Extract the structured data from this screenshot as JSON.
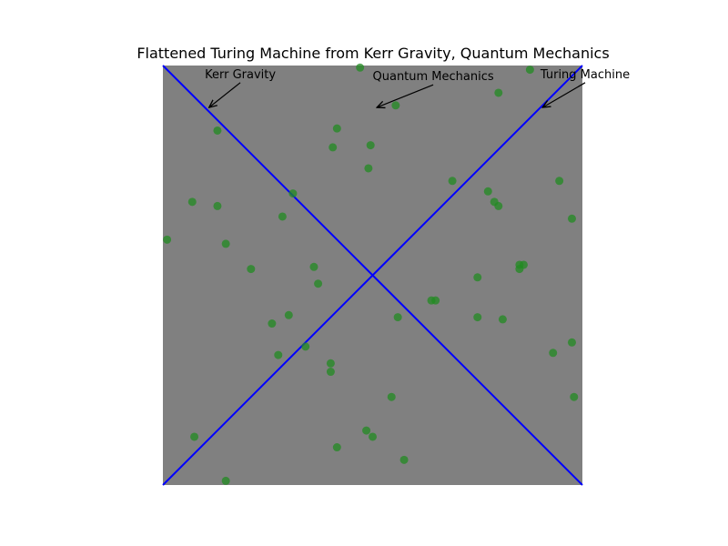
{
  "chart_data": {
    "type": "scatter",
    "title": "Flattened Turing Machine from Kerr Gravity, Quantum Mechanics",
    "xlabel": "",
    "ylabel": "",
    "xlim": [
      -1,
      1
    ],
    "ylim": [
      -1,
      1
    ],
    "axes_visible": false,
    "grid": false,
    "colors": {
      "background": "#808080",
      "points": "#228b22",
      "curves": "#0000ff"
    },
    "curves": [
      {
        "x": [
          -1,
          -0.02,
          0,
          0.02,
          1
        ],
        "y": [
          1,
          0.02,
          0,
          0.02,
          1
        ]
      },
      {
        "x": [
          -1,
          -0.02,
          0,
          0.02,
          1
        ],
        "y": [
          -1,
          -0.02,
          0,
          -0.02,
          -1
        ]
      }
    ],
    "points": [
      {
        "x": -0.06,
        "y": 0.99
      },
      {
        "x": 0.75,
        "y": 0.98
      },
      {
        "x": 0.6,
        "y": 0.87
      },
      {
        "x": 0.11,
        "y": 0.81
      },
      {
        "x": -0.74,
        "y": 0.69
      },
      {
        "x": -0.17,
        "y": 0.7
      },
      {
        "x": -0.19,
        "y": 0.61
      },
      {
        "x": -0.01,
        "y": 0.62
      },
      {
        "x": -0.02,
        "y": 0.51
      },
      {
        "x": 0.38,
        "y": 0.45
      },
      {
        "x": 0.55,
        "y": 0.4
      },
      {
        "x": 0.89,
        "y": 0.45
      },
      {
        "x": -0.38,
        "y": 0.39
      },
      {
        "x": -0.86,
        "y": 0.35
      },
      {
        "x": -0.74,
        "y": 0.33
      },
      {
        "x": 0.58,
        "y": 0.35
      },
      {
        "x": 0.6,
        "y": 0.33
      },
      {
        "x": -0.43,
        "y": 0.28
      },
      {
        "x": 0.95,
        "y": 0.27
      },
      {
        "x": -0.98,
        "y": 0.17
      },
      {
        "x": -0.7,
        "y": 0.15
      },
      {
        "x": -0.58,
        "y": 0.03
      },
      {
        "x": -0.28,
        "y": 0.04
      },
      {
        "x": 0.7,
        "y": 0.05
      },
      {
        "x": 0.72,
        "y": 0.05
      },
      {
        "x": 0.7,
        "y": 0.03
      },
      {
        "x": 0.5,
        "y": -0.01
      },
      {
        "x": -0.26,
        "y": -0.04
      },
      {
        "x": 0.28,
        "y": -0.12
      },
      {
        "x": 0.3,
        "y": -0.12
      },
      {
        "x": 0.12,
        "y": -0.2
      },
      {
        "x": 0.5,
        "y": -0.2
      },
      {
        "x": 0.62,
        "y": -0.21
      },
      {
        "x": -0.4,
        "y": -0.19
      },
      {
        "x": -0.48,
        "y": -0.23
      },
      {
        "x": -0.32,
        "y": -0.34
      },
      {
        "x": -0.45,
        "y": -0.38
      },
      {
        "x": 0.86,
        "y": -0.37
      },
      {
        "x": 0.95,
        "y": -0.32
      },
      {
        "x": -0.2,
        "y": -0.42
      },
      {
        "x": -0.2,
        "y": -0.46
      },
      {
        "x": 0.09,
        "y": -0.58
      },
      {
        "x": 0.96,
        "y": -0.58
      },
      {
        "x": -0.03,
        "y": -0.74
      },
      {
        "x": 0.0,
        "y": -0.77
      },
      {
        "x": -0.17,
        "y": -0.82
      },
      {
        "x": 0.15,
        "y": -0.88
      },
      {
        "x": -0.85,
        "y": -0.77
      },
      {
        "x": -0.7,
        "y": -0.98
      }
    ],
    "annotations": [
      {
        "text": "Kerr Gravity",
        "x": -0.78,
        "y": 0.8,
        "text_x": -0.8,
        "text_y": 0.94
      },
      {
        "text": "Quantum Mechanics",
        "x": 0.02,
        "y": 0.8,
        "text_x": 0.0,
        "text_y": 0.93
      },
      {
        "text": "Turing Machine",
        "x": 0.81,
        "y": 0.8,
        "text_x": 0.8,
        "text_y": 0.94
      }
    ]
  }
}
